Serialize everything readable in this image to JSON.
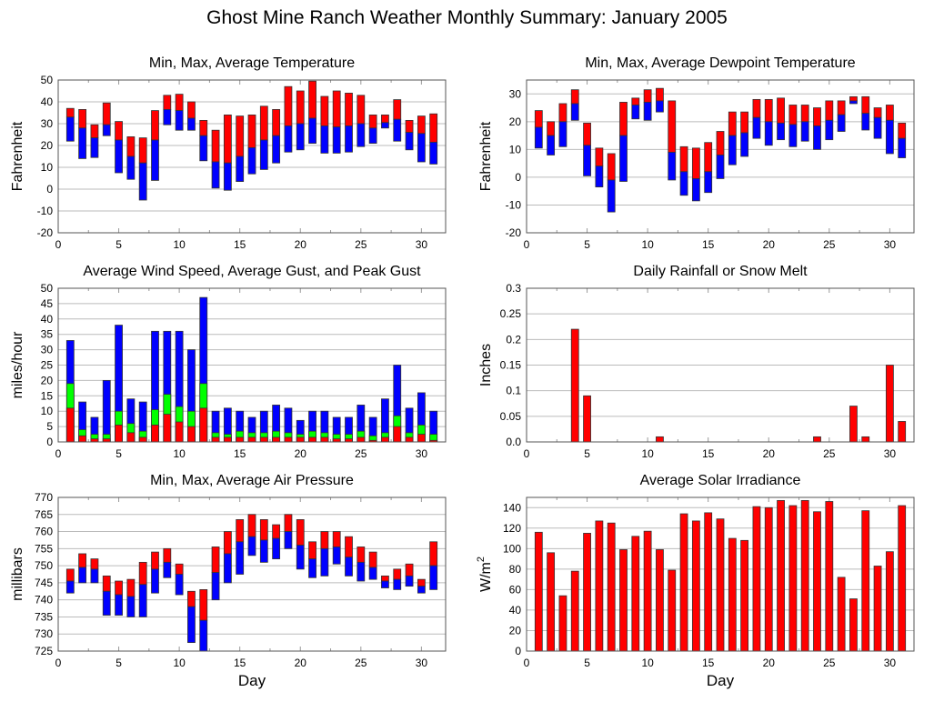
{
  "title": "Ghost Mine Ranch Weather Monthly Summary: January 2005",
  "colors": {
    "red": "#ff0000",
    "blue": "#0000ff",
    "green": "#00ff00"
  },
  "chart_data": [
    {
      "id": "temperature",
      "type": "bar",
      "subtype": "floating-range",
      "title": "Min, Max, Average Temperature",
      "xlabel": "",
      "ylabel": "Fahrenheit",
      "xlim": [
        0,
        32
      ],
      "ylim": [
        -20,
        50
      ],
      "yticks": [
        -20,
        -10,
        0,
        10,
        20,
        30,
        40,
        50
      ],
      "xticks": [
        0,
        5,
        10,
        15,
        20,
        25,
        30
      ],
      "grid": true,
      "x": [
        1,
        2,
        3,
        4,
        5,
        6,
        7,
        8,
        9,
        10,
        11,
        12,
        13,
        14,
        15,
        16,
        17,
        18,
        19,
        20,
        21,
        22,
        23,
        24,
        25,
        26,
        27,
        28,
        29,
        30,
        31
      ],
      "series": [
        {
          "name": "Max",
          "color": "red",
          "values": [
            37,
            36.5,
            29.5,
            39.5,
            31,
            24,
            23.5,
            36,
            43,
            43.5,
            40,
            31.5,
            27,
            34,
            33.5,
            34,
            38,
            36.5,
            47,
            45,
            49.5,
            42.5,
            45,
            44,
            43,
            34,
            34,
            41,
            31.5,
            33.5,
            34.5
          ]
        },
        {
          "name": "Average",
          "color": "boundary",
          "values": [
            33,
            28,
            23.5,
            29.5,
            22.5,
            15,
            12,
            22.5,
            36.5,
            36,
            32.5,
            24.5,
            12.5,
            12,
            15,
            19,
            22.5,
            24.5,
            29,
            30,
            32.5,
            29,
            28.5,
            29,
            30,
            28,
            30.5,
            32,
            26,
            25.5,
            21.5
          ]
        },
        {
          "name": "Min",
          "color": "blue",
          "values": [
            22,
            14,
            14.5,
            24.5,
            7.5,
            4.5,
            -5,
            4,
            29.5,
            27,
            27,
            13,
            0.5,
            -0.5,
            3.5,
            7,
            9,
            12,
            17,
            18,
            21,
            16.5,
            16.5,
            17,
            19.5,
            21,
            28,
            22,
            18,
            12.5,
            11.5
          ]
        }
      ]
    },
    {
      "id": "dewpoint",
      "type": "bar",
      "subtype": "floating-range",
      "title": "Min, Max, Average Dewpoint Temperature",
      "xlabel": "",
      "ylabel": "Fahrenheit",
      "xlim": [
        0,
        32
      ],
      "ylim": [
        -20,
        35
      ],
      "yticks": [
        -20,
        -10,
        0,
        10,
        20,
        30
      ],
      "xticks": [
        0,
        5,
        10,
        15,
        20,
        25,
        30
      ],
      "grid": true,
      "x": [
        1,
        2,
        3,
        4,
        5,
        6,
        7,
        8,
        9,
        10,
        11,
        12,
        13,
        14,
        15,
        16,
        17,
        18,
        19,
        20,
        21,
        22,
        23,
        24,
        25,
        26,
        27,
        28,
        29,
        30,
        31
      ],
      "series": [
        {
          "name": "Max",
          "color": "red",
          "values": [
            24,
            20,
            26.5,
            31.5,
            19.5,
            10.5,
            8.5,
            27,
            28.5,
            31.5,
            32,
            27.5,
            11,
            10.5,
            12.5,
            16.5,
            23.5,
            23.5,
            28,
            28,
            28.5,
            26,
            26,
            25,
            27.5,
            27.5,
            29,
            29,
            25,
            26,
            19.5
          ]
        },
        {
          "name": "Average",
          "color": "boundary",
          "values": [
            18,
            15,
            20,
            26.5,
            11.5,
            4,
            -1,
            15,
            26,
            27,
            27.5,
            9,
            2,
            -0.5,
            2,
            8,
            15,
            16,
            21.5,
            20,
            19.5,
            19,
            20,
            18.5,
            20.5,
            22.5,
            27.5,
            23,
            21.5,
            20.5,
            14
          ]
        },
        {
          "name": "Min",
          "color": "blue",
          "values": [
            10.5,
            8,
            11,
            20.5,
            0.5,
            -3.5,
            -12.5,
            -1.5,
            21,
            20.5,
            23.5,
            -1,
            -6.5,
            -8.5,
            -5.5,
            -0.5,
            4.5,
            7.5,
            14,
            11.5,
            13.5,
            11,
            13,
            10,
            13.5,
            16.5,
            26.5,
            17,
            14,
            8.5,
            7
          ]
        }
      ]
    },
    {
      "id": "wind",
      "type": "bar",
      "subtype": "overlaid",
      "title": "Average Wind Speed, Average Gust, and Peak Gust",
      "xlabel": "",
      "ylabel": "miles/hour",
      "xlim": [
        0,
        32
      ],
      "ylim": [
        0,
        50
      ],
      "yticks": [
        0,
        5,
        10,
        15,
        20,
        25,
        30,
        35,
        40,
        45,
        50
      ],
      "xticks": [
        0,
        5,
        10,
        15,
        20,
        25,
        30
      ],
      "grid": true,
      "x": [
        1,
        2,
        3,
        4,
        5,
        6,
        7,
        8,
        9,
        10,
        11,
        12,
        13,
        14,
        15,
        16,
        17,
        18,
        19,
        20,
        21,
        22,
        23,
        24,
        25,
        26,
        27,
        28,
        29,
        30,
        31
      ],
      "series": [
        {
          "name": "Peak Gust",
          "color": "blue",
          "values": [
            33,
            13,
            8,
            20,
            38,
            14,
            13,
            36,
            36,
            36,
            30,
            47,
            10,
            11,
            10,
            8,
            10,
            12,
            11,
            7,
            10,
            10,
            8,
            8,
            12,
            8,
            14,
            25,
            11,
            16,
            10
          ]
        },
        {
          "name": "Average Gust",
          "color": "green",
          "values": [
            19,
            4,
            2.5,
            2.5,
            10,
            6,
            3.5,
            10.5,
            15.5,
            11.5,
            10,
            19,
            3,
            2.5,
            3.5,
            3,
            3,
            3.5,
            3,
            2.5,
            3.5,
            3,
            2.5,
            2.5,
            3.5,
            2,
            3,
            8.5,
            3,
            5.5,
            2.5
          ]
        },
        {
          "name": "Average Wind Speed",
          "color": "red",
          "values": [
            11,
            2,
            1,
            1,
            5.5,
            3,
            1.5,
            5.5,
            9,
            6.5,
            5,
            11,
            1.5,
            1.5,
            1.5,
            1.5,
            1.5,
            1.5,
            1.5,
            1.5,
            1.5,
            1.5,
            1,
            1,
            1.5,
            0.5,
            1.5,
            5,
            1.5,
            2.5,
            0.5
          ]
        }
      ]
    },
    {
      "id": "rainfall",
      "type": "bar",
      "title": "Daily Rainfall or Snow Melt",
      "xlabel": "",
      "ylabel": "Inches",
      "xlim": [
        0,
        32
      ],
      "ylim": [
        0,
        0.3
      ],
      "yticks": [
        "0.0",
        "0.05",
        "0.1",
        "0.15",
        "0.2",
        "0.25",
        "0.3"
      ],
      "xticks": [
        0,
        5,
        10,
        15,
        20,
        25,
        30
      ],
      "grid": true,
      "x": [
        1,
        2,
        3,
        4,
        5,
        6,
        7,
        8,
        9,
        10,
        11,
        12,
        13,
        14,
        15,
        16,
        17,
        18,
        19,
        20,
        21,
        22,
        23,
        24,
        25,
        26,
        27,
        28,
        29,
        30,
        31
      ],
      "series": [
        {
          "name": "Rainfall",
          "color": "red",
          "values": [
            0,
            0,
            0,
            0.22,
            0.09,
            0,
            0,
            0,
            0,
            0,
            0.01,
            0,
            0,
            0,
            0,
            0,
            0,
            0,
            0,
            0,
            0,
            0,
            0,
            0.01,
            0,
            0,
            0.07,
            0.01,
            0,
            0.15,
            0.04
          ]
        }
      ]
    },
    {
      "id": "pressure",
      "type": "bar",
      "subtype": "floating-range",
      "title": "Min, Max, Average Air Pressure",
      "xlabel": "Day",
      "ylabel": "millibars",
      "xlim": [
        0,
        32
      ],
      "ylim": [
        725,
        770
      ],
      "yticks": [
        725,
        730,
        735,
        740,
        745,
        750,
        755,
        760,
        765,
        770
      ],
      "xticks": [
        0,
        5,
        10,
        15,
        20,
        25,
        30
      ],
      "grid": true,
      "x": [
        1,
        2,
        3,
        4,
        5,
        6,
        7,
        8,
        9,
        10,
        11,
        12,
        13,
        14,
        15,
        16,
        17,
        18,
        19,
        20,
        21,
        22,
        23,
        24,
        25,
        26,
        27,
        28,
        29,
        30,
        31
      ],
      "series": [
        {
          "name": "Max",
          "color": "red",
          "values": [
            749,
            753.5,
            752,
            747,
            745.5,
            746,
            751,
            754,
            755,
            750.5,
            742.5,
            743,
            755.5,
            760,
            763.5,
            765,
            763.5,
            762,
            765,
            763.5,
            757,
            760,
            760,
            758.5,
            755.5,
            754,
            747,
            749,
            750.5,
            746,
            757
          ]
        },
        {
          "name": "Average",
          "color": "boundary",
          "values": [
            745.5,
            749.5,
            749,
            742.5,
            741.5,
            741,
            744.5,
            749,
            751,
            747.5,
            738,
            734,
            748,
            753.5,
            757,
            758.5,
            757.5,
            758,
            760,
            756,
            752,
            755,
            755.5,
            752.5,
            751,
            749.5,
            745.5,
            746,
            747,
            744,
            750
          ]
        },
        {
          "name": "Min",
          "color": "blue",
          "values": [
            742,
            745,
            745,
            735.5,
            735.5,
            735,
            735,
            742,
            746.5,
            741.5,
            727.5,
            725,
            740,
            745,
            747.5,
            753,
            751,
            752,
            755,
            749,
            746.5,
            747,
            750.5,
            747,
            745.5,
            746,
            743.5,
            743,
            744,
            742,
            743
          ]
        }
      ]
    },
    {
      "id": "solar",
      "type": "bar",
      "title": "Average Solar Irradiance",
      "xlabel": "Day",
      "ylabel": "W/m",
      "ylabel_superscript": "2",
      "xlim": [
        0,
        32
      ],
      "ylim": [
        0,
        150
      ],
      "yticks": [
        0,
        20,
        40,
        60,
        80,
        100,
        120,
        140
      ],
      "xticks": [
        0,
        5,
        10,
        15,
        20,
        25,
        30
      ],
      "grid": true,
      "x": [
        1,
        2,
        3,
        4,
        5,
        6,
        7,
        8,
        9,
        10,
        11,
        12,
        13,
        14,
        15,
        16,
        17,
        18,
        19,
        20,
        21,
        22,
        23,
        24,
        25,
        26,
        27,
        28,
        29,
        30,
        31
      ],
      "series": [
        {
          "name": "Irradiance",
          "color": "red",
          "values": [
            116,
            96,
            54,
            78,
            115,
            127,
            125,
            99,
            112,
            117,
            99,
            79,
            134,
            127,
            135,
            129,
            110,
            108,
            141,
            140,
            147,
            142,
            147,
            136,
            146,
            72,
            51,
            137,
            83,
            97,
            142
          ]
        }
      ]
    }
  ]
}
